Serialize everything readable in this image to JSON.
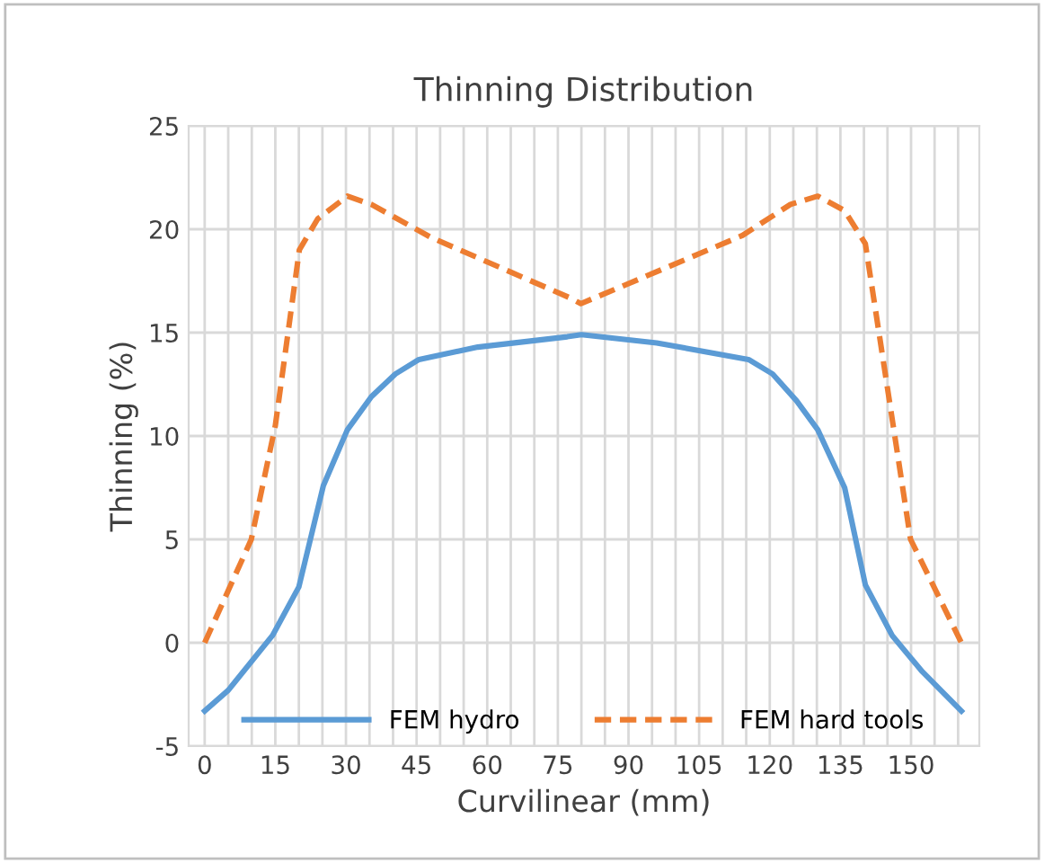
{
  "chart_data": {
    "type": "line",
    "title": "Thinning Distribution",
    "xlabel": "Curvilinear (mm)",
    "ylabel": "Thinning (%)",
    "xlim": [
      -3.4,
      164.5
    ],
    "ylim": [
      -5,
      25
    ],
    "xticks": [
      0,
      {
        "value": 5,
        "label": null
      },
      {
        "value": 10,
        "label": null
      },
      15,
      {
        "value": 20,
        "label": null
      },
      {
        "value": 25,
        "label": null
      },
      30,
      {
        "value": 35,
        "label": null
      },
      {
        "value": 40,
        "label": null
      },
      45,
      {
        "value": 50,
        "label": null
      },
      {
        "value": 55,
        "label": null
      },
      60,
      {
        "value": 65,
        "label": null
      },
      {
        "value": 70,
        "label": null
      },
      75,
      {
        "value": 80,
        "label": null
      },
      {
        "value": 85,
        "label": null
      },
      90,
      {
        "value": 95,
        "label": null
      },
      {
        "value": 100,
        "label": null
      },
      105,
      {
        "value": 110,
        "label": null
      },
      {
        "value": 115,
        "label": null
      },
      120,
      {
        "value": 125,
        "label": null
      },
      {
        "value": 130,
        "label": null
      },
      135,
      {
        "value": 140,
        "label": null
      },
      {
        "value": 145,
        "label": null
      },
      150,
      {
        "value": 155,
        "label": null
      },
      {
        "value": 160,
        "label": null
      }
    ],
    "yticks": [
      -5,
      0,
      5,
      10,
      15,
      20,
      25
    ],
    "grid": true,
    "legend": "bottom",
    "series": [
      {
        "name": "FEM hydro",
        "color": "#5b9bd5",
        "line_style": "solid",
        "x": [
          0,
          5,
          14.4,
          20,
          25.2,
          30.3,
          35.4,
          40.5,
          45.5,
          58,
          77,
          80,
          96,
          115.5,
          120.6,
          125.7,
          130.2,
          135.9,
          140.3,
          146,
          152.4,
          160.7
        ],
        "values": [
          -3.3,
          -2.3,
          0.35,
          2.7,
          7.6,
          10.3,
          11.9,
          13.0,
          13.7,
          14.3,
          14.8,
          14.9,
          14.5,
          13.7,
          13.0,
          11.7,
          10.3,
          7.5,
          2.8,
          0.35,
          -1.4,
          -3.3
        ]
      },
      {
        "name": "FEM hard tools",
        "color": "#ed7d31",
        "line_style": "dashed",
        "x": [
          0,
          9.9,
          15,
          20.1,
          24,
          30.3,
          35.4,
          48.1,
          77.4,
          79.9,
          114.2,
          124.4,
          130.2,
          135.9,
          140.3,
          144.2,
          149.9,
          160.7
        ],
        "values": [
          0,
          5.0,
          10.5,
          19.0,
          20.5,
          21.6,
          21.2,
          19.6,
          16.7,
          16.4,
          19.7,
          21.2,
          21.6,
          20.9,
          19.3,
          13.5,
          5.0,
          0
        ]
      }
    ]
  }
}
